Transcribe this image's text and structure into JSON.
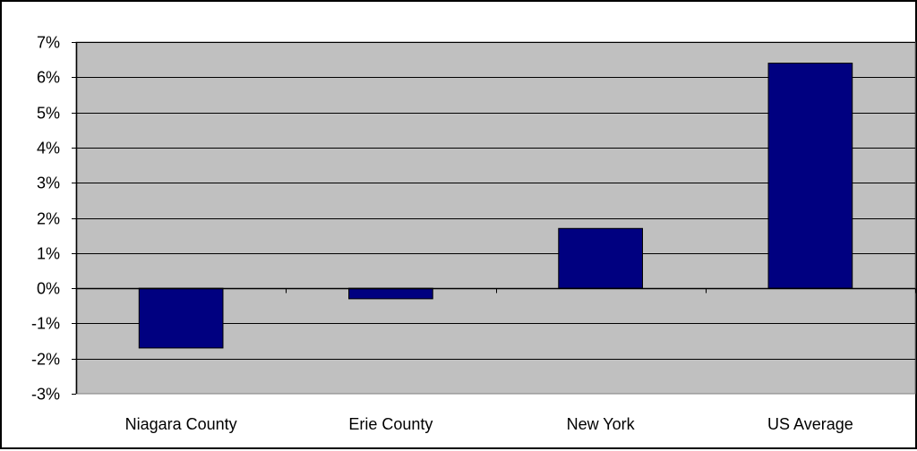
{
  "chart_data": {
    "type": "bar",
    "categories": [
      "Niagara County",
      "Erie County",
      "New York",
      "US Average"
    ],
    "values": [
      -1.7,
      -0.3,
      1.7,
      6.4
    ],
    "title": "",
    "xlabel": "",
    "ylabel": "",
    "ylim": [
      -3,
      7
    ],
    "yticks": [
      "7%",
      "6%",
      "5%",
      "4%",
      "3%",
      "2%",
      "1%",
      "0%",
      "-1%",
      "-2%",
      "-3%"
    ],
    "grid": true,
    "legend": "none",
    "colors": {
      "bar": "#000080",
      "plot_background": "#c0c0c0",
      "gridline": "#000000"
    }
  }
}
